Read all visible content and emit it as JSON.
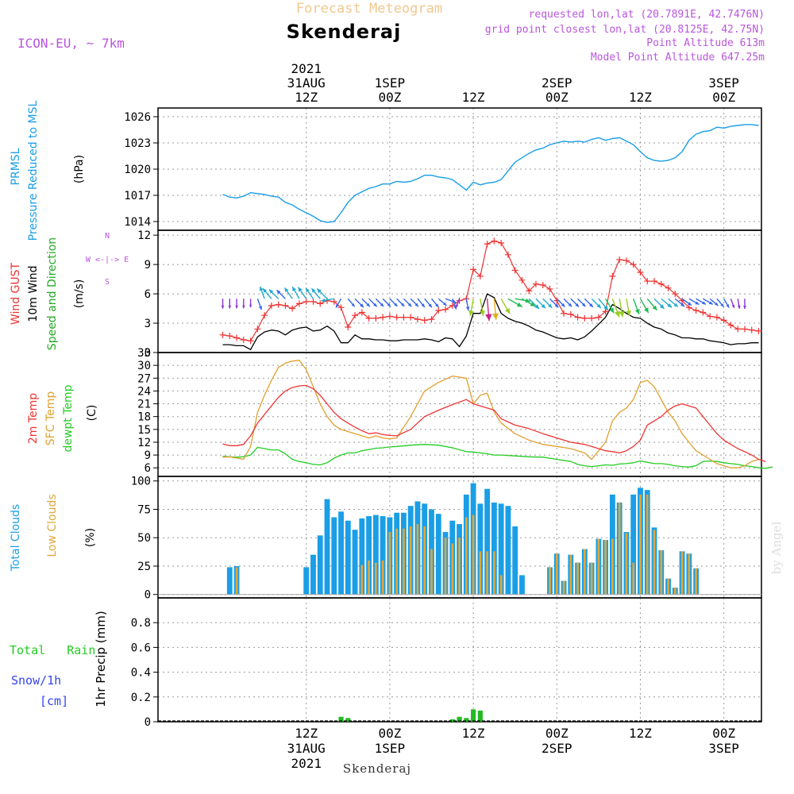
{
  "header": {
    "banner": "Forecast Meteogram",
    "station": "Skenderaj",
    "model": "ICON-EU, ~ 7km",
    "requested": "requested lon,lat (20.7891E, 42.7476N)",
    "gridpoint": "grid point closest lon,lat (20.8125E, 42.75N)",
    "point_alt": "Point Altitude 613m",
    "model_alt": "Model Point Altitude 647.25m"
  },
  "footer": {
    "station": "Skenderaj",
    "watermark": "by Angel"
  },
  "time_axis": {
    "top_labels": [
      {
        "t": 12,
        "l1": "2021",
        "l2": "31AUG",
        "l3": "12Z"
      },
      {
        "t": 24,
        "l1": "",
        "l2": "1SEP",
        "l3": "00Z"
      },
      {
        "t": 36,
        "l1": "",
        "l2": "",
        "l3": "12Z"
      },
      {
        "t": 48,
        "l1": "",
        "l2": "2SEP",
        "l3": "00Z"
      },
      {
        "t": 60,
        "l1": "",
        "l2": "",
        "l3": "12Z"
      },
      {
        "t": 72,
        "l1": "",
        "l2": "3SEP",
        "l3": "00Z"
      }
    ],
    "bottom_labels": [
      {
        "t": 12,
        "l1": "12Z",
        "l2": "31AUG",
        "l3": "2021"
      },
      {
        "t": 24,
        "l1": "00Z",
        "l2": "1SEP",
        "l3": ""
      },
      {
        "t": 36,
        "l1": "12Z",
        "l2": "",
        "l3": ""
      },
      {
        "t": 48,
        "l1": "00Z",
        "l2": "2SEP",
        "l3": ""
      },
      {
        "t": 60,
        "l1": "12Z",
        "l2": "",
        "l3": ""
      },
      {
        "t": 72,
        "l1": "00Z",
        "l2": "3SEP",
        "l3": ""
      }
    ]
  },
  "colors": {
    "pressure": "#1a9ee6",
    "gust": "#ee3333",
    "wind": "#000000",
    "t2m": "#ee3333",
    "sfc": "#e0a030",
    "dew": "#22cc22",
    "total_clouds": "#1a9ee6",
    "low_clouds": "#dfa63a",
    "rain": "#22bb22",
    "snow": "#3344ee",
    "violet": "#bb55dd",
    "banner": "#f0c890"
  },
  "chart_data": [
    {
      "type": "line",
      "panel": "pressure",
      "ylabel_lines": [
        "PRMSL",
        "Pressure Reduced to MSL"
      ],
      "unit": "(hPa)",
      "ylim": [
        1013,
        1027
      ],
      "yticks": [
        1014,
        1017,
        1020,
        1023,
        1026
      ],
      "x": [
        0,
        1,
        2,
        3,
        4,
        5,
        6,
        7,
        8,
        9,
        10,
        11,
        12,
        13,
        14,
        15,
        16,
        17,
        18,
        19,
        20,
        21,
        22,
        23,
        24,
        25,
        26,
        27,
        28,
        29,
        30,
        31,
        32,
        33,
        34,
        35,
        36,
        37,
        38,
        39,
        40,
        41,
        42,
        43,
        44,
        45,
        46,
        47,
        48,
        49,
        50,
        51,
        52,
        53,
        54,
        55,
        56,
        57,
        58,
        59,
        60,
        61,
        62,
        63,
        64,
        65,
        66,
        67,
        68,
        69,
        70,
        71,
        72,
        73,
        74,
        75,
        76,
        77
      ],
      "values": [
        1017.1,
        1016.8,
        1016.7,
        1016.9,
        1017.3,
        1017.2,
        1017.1,
        1016.9,
        1016.8,
        1016.2,
        1015.9,
        1015.4,
        1015.0,
        1014.6,
        1014.1,
        1013.9,
        1014.0,
        1015.0,
        1016.2,
        1017.0,
        1017.4,
        1017.8,
        1018.0,
        1018.3,
        1018.3,
        1018.6,
        1018.5,
        1018.6,
        1018.9,
        1019.3,
        1019.3,
        1019.1,
        1019.0,
        1018.8,
        1018.2,
        1017.6,
        1018.5,
        1018.2,
        1018.4,
        1018.5,
        1018.8,
        1019.8,
        1020.8,
        1021.3,
        1021.8,
        1022.2,
        1022.4,
        1022.8,
        1023.0,
        1023.2,
        1023.1,
        1023.2,
        1023.1,
        1023.4,
        1023.6,
        1023.3,
        1023.5,
        1023.6,
        1023.2,
        1022.8,
        1022.0,
        1021.3,
        1021.0,
        1020.9,
        1021.0,
        1021.3,
        1022.0,
        1023.3,
        1024.0,
        1024.3,
        1024.4,
        1024.8,
        1024.7,
        1024.9,
        1025.0,
        1025.1,
        1025.1,
        1025.0
      ],
      "series": [
        {
          "name": "PRMSL"
        }
      ]
    },
    {
      "type": "line",
      "panel": "wind",
      "ylabel_lines": [
        "Wind GUST",
        "10m Wind",
        "Speed and Direction"
      ],
      "unit": "(m/s)",
      "compass": [
        "N",
        "S",
        "W <-|-> E"
      ],
      "ylim": [
        0,
        12.5
      ],
      "yticks": [
        0,
        3,
        6,
        9,
        12
      ],
      "x": [
        0,
        1,
        2,
        3,
        4,
        5,
        6,
        7,
        8,
        9,
        10,
        11,
        12,
        13,
        14,
        15,
        16,
        17,
        18,
        19,
        20,
        21,
        22,
        23,
        24,
        25,
        26,
        27,
        28,
        29,
        30,
        31,
        32,
        33,
        34,
        35,
        36,
        37,
        38,
        39,
        40,
        41,
        42,
        43,
        44,
        45,
        46,
        47,
        48,
        49,
        50,
        51,
        52,
        53,
        54,
        55,
        56,
        57,
        58,
        59,
        60,
        61,
        62,
        63,
        64,
        65,
        66,
        67,
        68,
        69,
        70,
        71,
        72,
        73,
        74,
        75,
        76,
        77
      ],
      "gust": [
        1.8,
        1.7,
        1.5,
        1.3,
        1.2,
        2.4,
        3.8,
        4.8,
        4.9,
        4.8,
        4.5,
        5.0,
        5.2,
        5.2,
        5.0,
        5.3,
        5.2,
        4.6,
        2.6,
        3.8,
        4.1,
        3.5,
        3.5,
        3.6,
        3.7,
        3.6,
        3.6,
        3.6,
        3.4,
        3.3,
        3.4,
        4.3,
        4.4,
        4.8,
        5.3,
        5.5,
        8.5,
        7.8,
        11.1,
        11.4,
        11.2,
        10.0,
        8.4,
        7.4,
        6.3,
        7.0,
        6.9,
        6.5,
        5.3,
        4.0,
        3.9,
        3.6,
        3.5,
        3.5,
        3.6,
        4.2,
        7.8,
        9.5,
        9.4,
        9.0,
        8.2,
        7.3,
        7.3,
        7.0,
        6.6,
        6.0,
        5.3,
        4.6,
        4.3,
        4.1,
        3.7,
        3.6,
        3.3,
        2.8,
        2.4,
        2.4,
        2.3,
        2.2
      ],
      "wind10m": [
        0.8,
        0.8,
        0.7,
        0.7,
        0.3,
        1.6,
        2.1,
        2.3,
        2.2,
        1.8,
        2.3,
        2.5,
        2.6,
        2.2,
        2.3,
        2.7,
        2.2,
        1.0,
        1.0,
        1.8,
        1.4,
        1.4,
        1.3,
        1.3,
        1.2,
        1.2,
        1.3,
        1.3,
        1.3,
        1.4,
        1.3,
        1.1,
        1.5,
        1.4,
        0.6,
        1.7,
        4.0,
        4.0,
        6.0,
        5.6,
        4.0,
        3.5,
        3.2,
        3.0,
        2.7,
        2.3,
        2.1,
        1.8,
        1.5,
        1.4,
        1.5,
        1.3,
        1.6,
        2.2,
        2.9,
        3.6,
        4.9,
        4.5,
        4.0,
        3.6,
        3.5,
        3.0,
        2.6,
        2.4,
        2.0,
        1.8,
        1.5,
        1.5,
        1.4,
        1.4,
        1.2,
        1.1,
        1.0,
        0.8,
        0.9,
        0.9,
        1.0,
        1.0
      ],
      "wind_dir_deg": [
        0,
        0,
        0,
        0,
        0,
        20,
        200,
        220,
        225,
        225,
        215,
        210,
        215,
        215,
        220,
        225,
        280,
        330,
        40,
        45,
        45,
        45,
        45,
        45,
        45,
        45,
        45,
        45,
        40,
        40,
        40,
        50,
        70,
        20,
        340,
        10,
        350,
        10,
        5,
        5,
        30,
        60,
        80,
        60,
        45,
        45,
        45,
        45,
        45,
        45,
        45,
        45,
        45,
        45,
        40,
        30,
        20,
        10,
        10,
        20,
        30,
        40,
        45,
        50,
        50,
        50,
        55,
        60,
        60,
        60,
        50,
        40,
        30,
        20,
        10,
        0,
        0,
        0
      ],
      "series": [
        {
          "name": "Wind GUST"
        },
        {
          "name": "10m Wind"
        }
      ]
    },
    {
      "type": "line",
      "panel": "temperature",
      "ylabel_lines": [
        "2m Temp",
        "SFC Temp",
        "dewpt Temp"
      ],
      "unit": "(C)",
      "ylim": [
        4,
        33
      ],
      "yticks": [
        6,
        9,
        12,
        15,
        18,
        21,
        24,
        27,
        30,
        33
      ],
      "x": [
        0,
        1,
        2,
        3,
        4,
        5,
        6,
        7,
        8,
        9,
        10,
        11,
        12,
        13,
        14,
        15,
        16,
        17,
        18,
        19,
        20,
        21,
        22,
        23,
        24,
        25,
        26,
        27,
        28,
        29,
        30,
        31,
        32,
        33,
        34,
        35,
        36,
        37,
        38,
        39,
        40,
        41,
        42,
        43,
        44,
        45,
        46,
        47,
        48,
        49,
        50,
        51,
        52,
        53,
        54,
        55,
        56,
        57,
        58,
        59,
        60,
        61,
        62,
        63,
        64,
        65,
        66,
        67,
        68,
        69,
        70,
        71,
        72,
        73,
        74,
        75,
        76,
        77
      ],
      "t2m": [
        11.6,
        11.2,
        11.2,
        11.5,
        13.5,
        16.5,
        18.5,
        20.5,
        22.5,
        24.0,
        24.8,
        25.2,
        25.3,
        24.5,
        23.0,
        21.0,
        19.0,
        17.5,
        16.5,
        15.5,
        14.7,
        14.0,
        14.2,
        13.8,
        13.6,
        13.5,
        15.0,
        18.0,
        19.5,
        20.8,
        22.0,
        21.0,
        20.5,
        20.0,
        19.5,
        17.5,
        16.0,
        15.2,
        14.0,
        13.0,
        12.0,
        11.5,
        11.0,
        10.5,
        10.0,
        9.8,
        9.5,
        10.0,
        11.0,
        12.5,
        16.0,
        17.0,
        18.0,
        19.5,
        20.5,
        21.0,
        20.5,
        20.0,
        18.0,
        16.0,
        14.0,
        12.5,
        11.5,
        10.5,
        9.8,
        9.0,
        8.0,
        7.5
      ],
      "x_t": [
        0,
        1,
        2,
        3,
        4,
        5,
        6,
        7,
        8,
        9,
        10,
        11,
        12,
        13,
        14,
        15,
        16,
        17,
        18,
        19,
        20,
        21,
        22,
        23,
        24,
        25,
        27,
        29,
        31,
        33,
        35,
        36,
        37,
        38,
        39,
        40,
        42,
        44,
        46,
        48,
        50,
        52,
        53,
        54,
        55,
        56,
        57,
        58,
        59,
        60,
        61,
        62,
        63,
        64,
        65,
        66,
        67,
        68,
        69,
        70,
        71,
        72,
        73,
        74,
        75,
        76,
        77,
        78
      ],
      "sfc": [
        8.5,
        8.6,
        8.3,
        8.0,
        11.0,
        19.0,
        23.0,
        26.5,
        29.5,
        30.5,
        31.0,
        31.2,
        29.0,
        25.0,
        21.0,
        18.0,
        16.0,
        15.0,
        14.5,
        14.0,
        13.5,
        13.0,
        13.5,
        13.0,
        12.8,
        13.0,
        18.0,
        24.0,
        26.0,
        27.5,
        27.0,
        21.0,
        23.0,
        23.5,
        19.0,
        16.5,
        14.0,
        12.5,
        11.5,
        11.0,
        10.5,
        10.0,
        9.5,
        8.0,
        10.0,
        12.0,
        17.0,
        19.0,
        20.0,
        22.0,
        26.0,
        26.5,
        25.0,
        22.0,
        19.0,
        17.0,
        14.0,
        12.0,
        10.0,
        9.0,
        8.0,
        7.0,
        6.5,
        6.0,
        6.0,
        6.5,
        7.5,
        8.0
      ],
      "x_sfc": [
        0,
        1,
        2,
        3,
        4,
        5,
        6,
        7,
        8,
        9,
        10,
        11,
        12,
        13,
        14,
        15,
        16,
        17,
        18,
        19,
        20,
        21,
        22,
        23,
        24,
        25,
        27,
        29,
        31,
        33,
        35,
        36,
        37,
        38,
        39,
        40,
        42,
        44,
        46,
        48,
        50,
        51,
        52,
        53,
        54,
        55,
        56,
        57,
        58,
        59,
        60,
        61,
        62,
        63,
        64,
        65,
        66,
        67,
        68,
        69,
        70,
        71,
        72,
        73,
        74,
        75,
        76,
        77
      ],
      "dew": [
        8.7,
        8.6,
        8.5,
        8.6,
        9.0,
        10.8,
        10.5,
        10.2,
        10.2,
        9.3,
        8.0,
        7.5,
        7.2,
        6.8,
        6.7,
        7.2,
        8.3,
        9.0,
        9.5,
        9.5,
        10.0,
        10.3,
        10.6,
        10.7,
        10.9,
        11.0,
        11.3,
        11.5,
        11.3,
        10.7,
        9.8,
        9.7,
        9.5,
        9.3,
        9.0,
        9.0,
        8.8,
        8.6,
        8.5,
        8.0,
        7.5,
        6.8,
        6.5,
        6.3,
        6.5,
        6.7,
        6.6,
        6.9,
        7.0,
        7.2,
        7.6,
        7.3,
        7.0,
        7.0,
        6.8,
        6.5,
        6.3,
        6.2,
        6.5,
        7.5,
        7.6,
        7.5,
        7.2,
        7.0,
        6.8,
        6.5,
        6.3,
        6.0,
        5.9,
        6.2
      ],
      "x_dew": [
        0,
        1,
        2,
        3,
        4,
        5,
        6,
        7,
        8,
        9,
        10,
        11,
        12,
        13,
        14,
        15,
        16,
        17,
        18,
        19,
        20,
        21,
        22,
        23,
        24,
        25,
        27,
        29,
        31,
        33,
        35,
        36,
        37,
        38,
        39,
        40,
        42,
        44,
        46,
        48,
        50,
        51,
        52,
        53,
        54,
        55,
        56,
        57,
        58,
        59,
        60,
        61,
        62,
        63,
        64,
        65,
        66,
        67,
        68,
        69,
        70,
        71,
        72,
        73,
        74,
        75,
        76,
        77,
        78,
        79
      ],
      "series": [
        {
          "name": "2m Temp"
        },
        {
          "name": "SFC Temp"
        },
        {
          "name": "dewpt Temp"
        }
      ]
    },
    {
      "type": "bar",
      "panel": "clouds",
      "ylabel_lines": [
        "Total Clouds",
        "Low Clouds"
      ],
      "unit": "(%)",
      "ylim": [
        -3,
        104
      ],
      "yticks": [
        0,
        25,
        50,
        75,
        100
      ],
      "x": [
        1,
        2,
        12,
        13,
        14,
        15,
        16,
        17,
        18,
        19,
        20,
        21,
        22,
        23,
        24,
        25,
        26,
        27,
        28,
        29,
        30,
        31,
        32,
        33,
        34,
        35,
        36,
        37,
        38,
        39,
        40,
        41,
        42,
        43,
        47,
        48,
        49,
        50,
        51,
        52,
        53,
        54,
        55,
        56,
        57,
        58,
        59,
        60,
        61,
        62,
        63,
        64,
        65,
        66,
        67,
        68,
        69,
        70,
        71,
        72
      ],
      "total": [
        24,
        25,
        24,
        35,
        52,
        84,
        68,
        73,
        65,
        57,
        67,
        69,
        70,
        69,
        68,
        72,
        72,
        78,
        82,
        80,
        75,
        71,
        55,
        65,
        62,
        88,
        98,
        80,
        93,
        81,
        80,
        78,
        60,
        17,
        24,
        36,
        12,
        35,
        28,
        40,
        28,
        49,
        48,
        88,
        81,
        55,
        88,
        94,
        92,
        59,
        39,
        14,
        6,
        38,
        36,
        23
      ],
      "low": [
        0,
        24,
        0,
        0,
        0,
        0,
        0,
        0,
        0,
        0,
        26,
        30,
        28,
        30,
        55,
        58,
        58,
        60,
        62,
        60,
        40,
        0,
        50,
        45,
        50,
        68,
        70,
        38,
        38,
        38,
        17,
        0,
        0,
        0,
        24,
        36,
        12,
        35,
        28,
        40,
        28,
        49,
        48,
        49,
        81,
        54,
        28,
        88,
        88,
        57,
        39,
        14,
        6,
        38,
        36,
        23
      ],
      "x_total": [
        1,
        2,
        12,
        13,
        14,
        15,
        16,
        17,
        18,
        19,
        20,
        21,
        22,
        23,
        24,
        25,
        26,
        27,
        28,
        29,
        30,
        31,
        32,
        33,
        34,
        35,
        36,
        37,
        38,
        39,
        40,
        41,
        42,
        43,
        47,
        48,
        49,
        50,
        51,
        52,
        53,
        54,
        55,
        56,
        57,
        58,
        59,
        60,
        61,
        62,
        63,
        64,
        65,
        66,
        67,
        68
      ],
      "series": [
        {
          "name": "Total Clouds"
        },
        {
          "name": "Low Clouds"
        }
      ]
    },
    {
      "type": "bar",
      "panel": "precip",
      "ylabel_lines": [
        "Total   Rain",
        "Snow/1h",
        "[cm]"
      ],
      "unit": "1hr Precip (mm)",
      "ylim": [
        0,
        1.0
      ],
      "yticks": [
        0,
        0.2,
        0.4,
        0.6,
        0.8
      ],
      "ytick_labels": [
        "0",
        "0.2",
        "0.4",
        "0.6",
        "0.8"
      ],
      "x": [
        17,
        18,
        33,
        34,
        35,
        36,
        37
      ],
      "rain": [
        0.04,
        0.03,
        0.02,
        0.04,
        0.03,
        0.1,
        0.09
      ],
      "series": [
        {
          "name": "Total Rain"
        },
        {
          "name": "Snow/1h"
        }
      ]
    }
  ]
}
